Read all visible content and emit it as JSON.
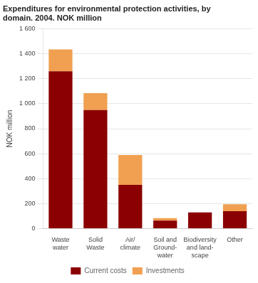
{
  "chart_data": {
    "type": "bar",
    "title": "Expenditures for environmental protection activities, by\ndomain. 2004. NOK million",
    "ylabel": "NOK million",
    "categories": [
      "Waste\nwater",
      "Solid\nWaste",
      "Air/\nclimate",
      "Soil and\nGround-\nwater",
      "Biodiversity\nand land-\nscape",
      "Other"
    ],
    "series": [
      {
        "name": "Current costs",
        "color": "#8B0000",
        "values": [
          1260,
          950,
          350,
          65,
          130,
          140
        ]
      },
      {
        "name": "Investments",
        "color": "#F0A050",
        "values": [
          175,
          135,
          240,
          20,
          0,
          55
        ]
      }
    ],
    "stacked": true,
    "ylim": [
      0,
      1600
    ],
    "yticks": [
      0,
      200,
      400,
      600,
      800,
      {
        "value": 1000,
        "label": "1 000"
      },
      {
        "value": 1200,
        "label": "1 200"
      },
      {
        "value": 1400,
        "label": "1 400"
      },
      {
        "value": 1600,
        "label": "1 600"
      }
    ],
    "grid": true,
    "legend": "bottom"
  }
}
